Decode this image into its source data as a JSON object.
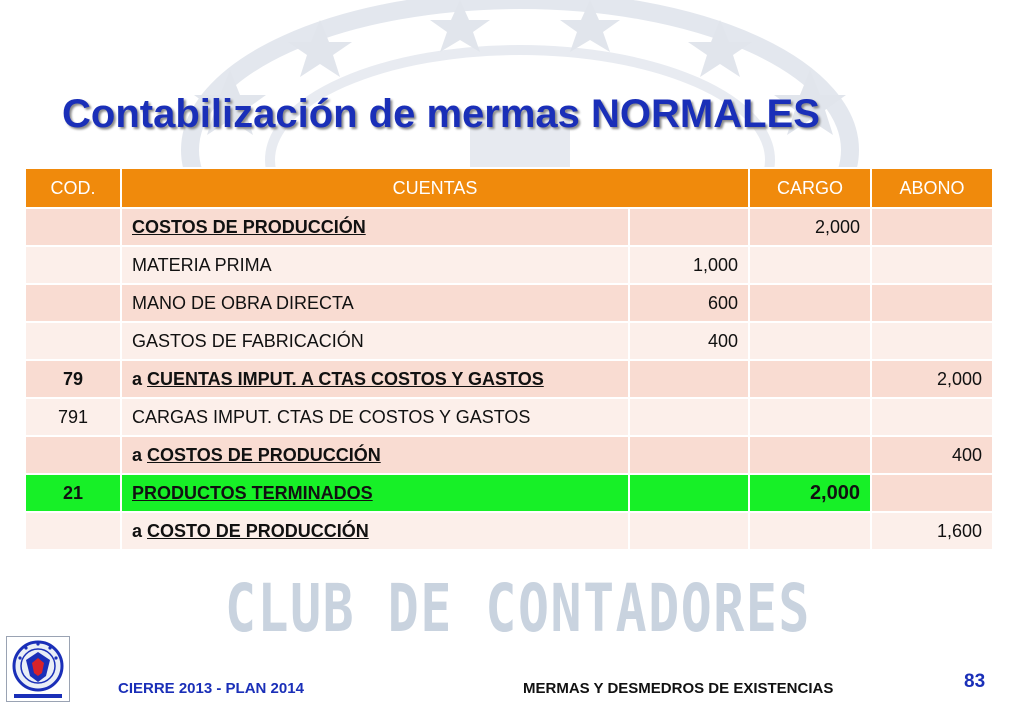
{
  "slide": {
    "title": "Contabilización de mermas NORMALES"
  },
  "table": {
    "headers": {
      "cod": "COD.",
      "cuentas": "CUENTAS",
      "cargo": "CARGO",
      "abono": "ABONO"
    },
    "rows": [
      {
        "cod": "",
        "prefix": "",
        "account": "COSTOS DE PRODUCCIÓN",
        "sub": "",
        "cargo": "2,000",
        "abono": ""
      },
      {
        "cod": "",
        "prefix": "",
        "account": "MATERIA PRIMA",
        "sub": "1,000",
        "cargo": "",
        "abono": ""
      },
      {
        "cod": "",
        "prefix": "",
        "account": "MANO DE OBRA DIRECTA",
        "sub": "600",
        "cargo": "",
        "abono": ""
      },
      {
        "cod": "",
        "prefix": "",
        "account": "GASTOS DE FABRICACIÓN",
        "sub": "400",
        "cargo": "",
        "abono": ""
      },
      {
        "cod": "79",
        "prefix": "a ",
        "account": "CUENTAS IMPUT. A CTAS COSTOS Y GASTOS",
        "sub": "",
        "cargo": "",
        "abono": "2,000"
      },
      {
        "cod": "791",
        "prefix": "",
        "account": "CARGAS IMPUT. CTAS DE COSTOS Y GASTOS",
        "sub": "",
        "cargo": "",
        "abono": ""
      },
      {
        "cod": "",
        "prefix": "a ",
        "account": "COSTOS DE PRODUCCIÓN",
        "sub": "",
        "cargo": "",
        "abono": "400"
      },
      {
        "cod": "21",
        "prefix": "",
        "account": "PRODUCTOS TERMINADOS",
        "sub": "",
        "cargo": "2,000",
        "abono": ""
      },
      {
        "cod": "",
        "prefix": "a ",
        "account": "COSTO DE PRODUCCIÓN",
        "sub": "",
        "cargo": "",
        "abono": "1,600"
      }
    ]
  },
  "watermark": {
    "text": "CLUB DE CONTADORES"
  },
  "footer": {
    "left": "CIERRE 2013 - PLAN 2014",
    "right": "MERMAS Y DESMEDROS DE EXISTENCIAS",
    "page": "83"
  },
  "colors": {
    "title": "#1a2fb8",
    "header_bg": "#f08a0c",
    "row_dark": "#f9dcd2",
    "row_light": "#fcefea",
    "highlight": "#17f027"
  },
  "icons": {
    "logo": "club-de-contadores-seal-icon"
  }
}
